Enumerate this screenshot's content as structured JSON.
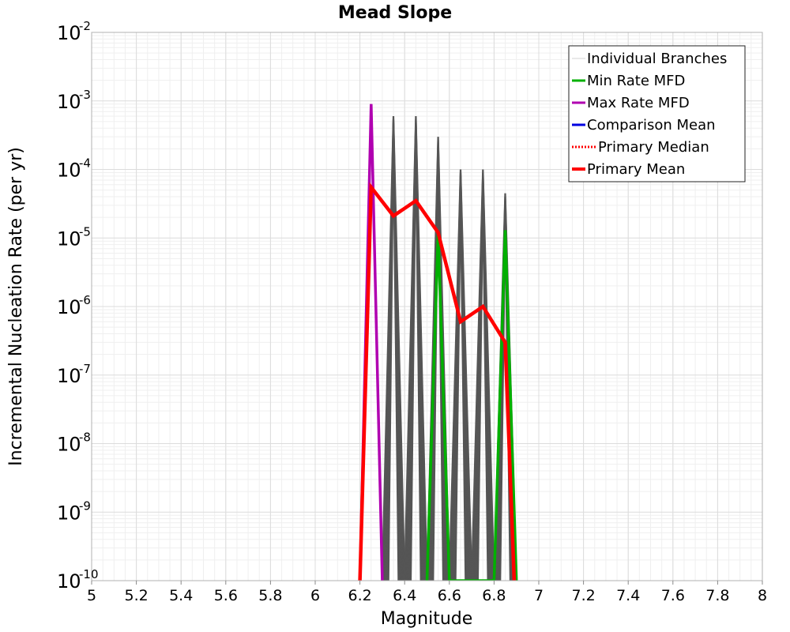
{
  "chart_data": {
    "type": "line",
    "title": "Mead Slope",
    "xlabel": "Magnitude",
    "ylabel": "Incremental Nucleation Rate (per yr)",
    "xlim": [
      5,
      8
    ],
    "ylim": [
      1e-10,
      0.01
    ],
    "yscale": "log",
    "grid": true,
    "x_ticks": [
      "5",
      "5.2",
      "5.4",
      "5.6",
      "5.8",
      "6",
      "6.2",
      "6.4",
      "6.6",
      "6.8",
      "7",
      "7.2",
      "7.4",
      "7.6",
      "7.8",
      "8"
    ],
    "x_tick_values": [
      5,
      5.2,
      5.4,
      5.6,
      5.8,
      6,
      6.2,
      6.4,
      6.6,
      6.8,
      7,
      7.2,
      7.4,
      7.6,
      7.8,
      8
    ],
    "y_ticks": [
      {
        "base": "10",
        "exp": "-2",
        "value": 0.01
      },
      {
        "base": "10",
        "exp": "-3",
        "value": 0.001
      },
      {
        "base": "10",
        "exp": "-4",
        "value": 0.0001
      },
      {
        "base": "10",
        "exp": "-5",
        "value": 1e-05
      },
      {
        "base": "10",
        "exp": "-6",
        "value": 1e-06
      },
      {
        "base": "10",
        "exp": "-7",
        "value": 1e-07
      },
      {
        "base": "10",
        "exp": "-8",
        "value": 1e-08
      },
      {
        "base": "10",
        "exp": "-9",
        "value": 1e-09
      },
      {
        "base": "10",
        "exp": "-10",
        "value": 1e-10
      }
    ],
    "legend_position": "top-right",
    "legend": [
      {
        "name": "Individual Branches",
        "color": "#d3d3d3",
        "style": "thin"
      },
      {
        "name": "Min Rate MFD",
        "color": "#00b000",
        "style": "solid"
      },
      {
        "name": "Max Rate MFD",
        "color": "#b000b0",
        "style": "solid"
      },
      {
        "name": "Comparison Mean",
        "color": "#0000e0",
        "style": "solid"
      },
      {
        "name": "Primary Median",
        "color": "#ff0000",
        "style": "dotted"
      },
      {
        "name": "Primary Mean",
        "color": "#ff0000",
        "style": "thick"
      }
    ],
    "individual_branches": {
      "color": "#555555",
      "peaks": [
        {
          "x": 6.35,
          "y": 0.0006
        },
        {
          "x": 6.45,
          "y": 0.0006
        },
        {
          "x": 6.55,
          "y": 0.0003
        },
        {
          "x": 6.65,
          "y": 0.0001
        },
        {
          "x": 6.75,
          "y": 0.0001
        },
        {
          "x": 6.85,
          "y": 4.5e-05
        }
      ],
      "half_width": 0.05,
      "count_per_peak": 8
    },
    "series": [
      {
        "name": "Min Rate MFD",
        "color": "#00b000",
        "x": [
          6.5,
          6.55,
          6.6,
          6.8,
          6.85,
          6.9
        ],
        "y": [
          1e-10,
          1.2e-05,
          1e-10,
          1e-10,
          1.3e-05,
          1e-10
        ]
      },
      {
        "name": "Max Rate MFD",
        "color": "#b000b0",
        "x": [
          6.2,
          6.25,
          6.3
        ],
        "y": [
          1e-10,
          0.0009,
          1e-10
        ]
      },
      {
        "name": "Primary Mean",
        "color": "#ff0000",
        "x": [
          6.2,
          6.25,
          6.35,
          6.45,
          6.55,
          6.65,
          6.75,
          6.85,
          6.89
        ],
        "y": [
          1e-10,
          5.5e-05,
          2.1e-05,
          3.5e-05,
          1.2e-05,
          6e-07,
          1e-06,
          3e-07,
          1e-10
        ]
      }
    ]
  }
}
